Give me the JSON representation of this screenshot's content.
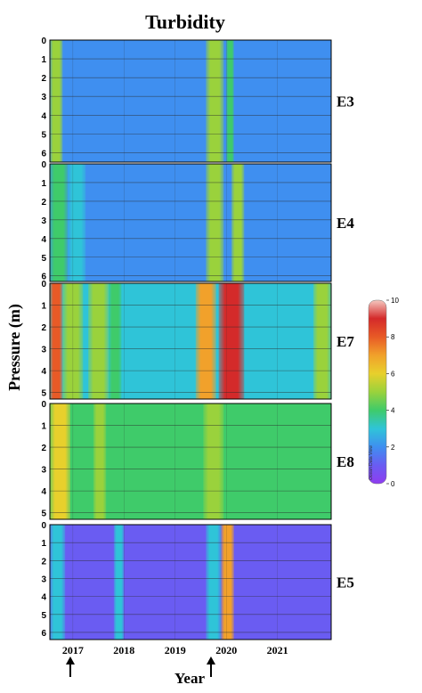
{
  "chart_data": {
    "type": "heatmap",
    "title": "Turbidity",
    "xlabel": "Year",
    "ylabel": "Pressure (m)",
    "x_ticks": [
      "2017",
      "2018",
      "2019",
      "2020",
      "2021"
    ],
    "xlim": [
      2016.55,
      2022.05
    ],
    "colorbar": {
      "range": [
        0,
        10
      ],
      "ticks": [
        "0",
        "2",
        "4",
        "6",
        "8",
        "10"
      ],
      "watermark": "Ocean Data View",
      "colors": [
        "#8f3cf0",
        "#6a5cf2",
        "#3f8ff0",
        "#2fc4d8",
        "#3fcb6a",
        "#9ad23c",
        "#e8d02c",
        "#f1a12b",
        "#e85a26",
        "#d42a2a",
        "#f5c8c0"
      ]
    },
    "arrows_at_year": [
      2016.95,
      2019.7
    ],
    "panels": [
      {
        "name": "E3",
        "y_ticks": [
          "0",
          "1",
          "2",
          "3",
          "4",
          "5",
          "6"
        ],
        "ylim": [
          0,
          6.5
        ],
        "base": 1.5,
        "bands": [
          [
            2016.55,
            2016.8,
            4.6
          ],
          [
            2019.6,
            2019.95,
            5.0
          ],
          [
            2020.0,
            2020.15,
            3.8
          ]
        ]
      },
      {
        "name": "E4",
        "y_ticks": [
          "0",
          "1",
          "2",
          "3",
          "4",
          "5",
          "6"
        ],
        "ylim": [
          0,
          6.3
        ],
        "base": 1.6,
        "bands": [
          [
            2016.55,
            2016.9,
            3.8
          ],
          [
            2016.9,
            2017.25,
            2.8
          ],
          [
            2019.6,
            2019.95,
            5.0
          ],
          [
            2020.1,
            2020.35,
            5.4
          ]
        ]
      },
      {
        "name": "E7",
        "y_ticks": [
          "0",
          "1",
          "2",
          "3",
          "4",
          "5"
        ],
        "ylim": [
          0,
          5.3
        ],
        "base": 2.8,
        "bands": [
          [
            2016.55,
            2016.8,
            7.6
          ],
          [
            2016.8,
            2017.2,
            5.4
          ],
          [
            2017.3,
            2017.7,
            5.0
          ],
          [
            2017.7,
            2017.95,
            3.6
          ],
          [
            2019.4,
            2019.8,
            6.6
          ],
          [
            2019.85,
            2020.35,
            8.9
          ],
          [
            2021.7,
            2022.05,
            4.8
          ]
        ]
      },
      {
        "name": "E8",
        "y_ticks": [
          "0",
          "1",
          "2",
          "3",
          "4",
          "5"
        ],
        "ylim": [
          0,
          5.3
        ],
        "base": 3.8,
        "bands": [
          [
            2016.55,
            2016.95,
            6.4
          ],
          [
            2017.4,
            2017.65,
            4.6
          ],
          [
            2018.3,
            2018.6,
            4.2
          ],
          [
            2019.55,
            2019.95,
            5.2
          ],
          [
            2020.6,
            2020.85,
            4.2
          ]
        ]
      },
      {
        "name": "E5",
        "y_ticks": [
          "0",
          "1",
          "2",
          "3",
          "4",
          "5",
          "6"
        ],
        "ylim": [
          0,
          6.4
        ],
        "base": 1.2,
        "bands": [
          [
            2016.55,
            2016.85,
            3.2
          ],
          [
            2017.8,
            2018.0,
            2.6
          ],
          [
            2019.6,
            2019.9,
            3.2
          ],
          [
            2019.9,
            2020.15,
            6.8
          ]
        ]
      }
    ]
  }
}
